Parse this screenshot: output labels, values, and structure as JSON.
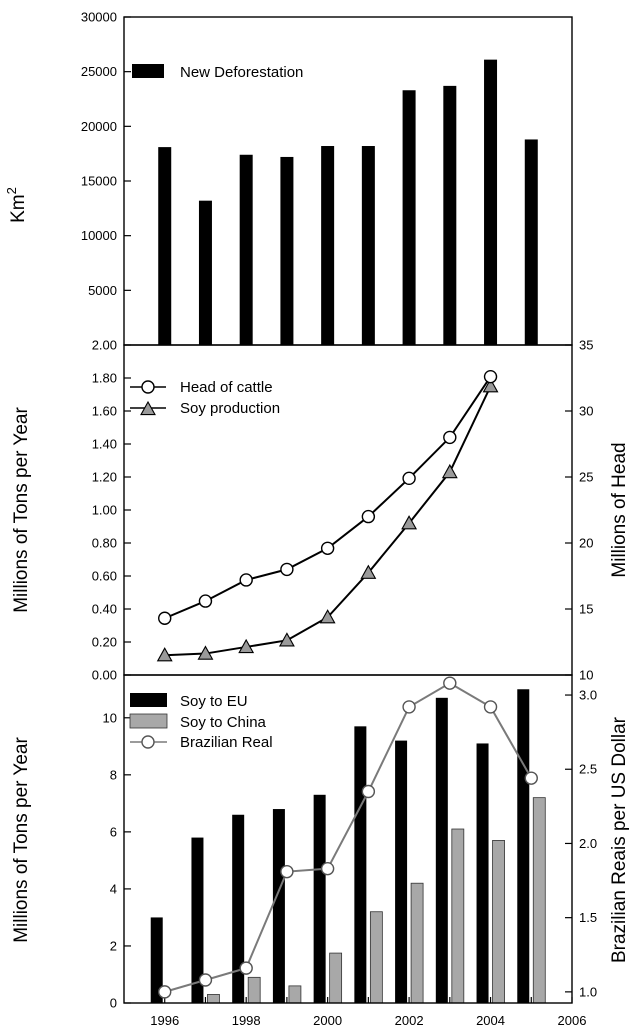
{
  "chart_data": [
    {
      "type": "bar",
      "ylabel": "Km",
      "ylabel_superscript": "2",
      "ylim": [
        0,
        30000
      ],
      "y_ticks": [
        "30000",
        "25000",
        "20000",
        "15000",
        "10000",
        "5000"
      ],
      "x_range": [
        1995,
        2006
      ],
      "colors": {
        "bar": "#000000"
      },
      "series": [
        {
          "name": "New Deforestation",
          "x": [
            1996,
            1997,
            1998,
            1999,
            2000,
            2001,
            2002,
            2003,
            2004,
            2005
          ],
          "values": [
            18100,
            13200,
            17400,
            17200,
            18200,
            18200,
            23300,
            23700,
            26100,
            18800
          ]
        }
      ],
      "legend": "top-left"
    },
    {
      "type": "line",
      "ylabel": "Millions of Tons per Year",
      "ylabel_right": "Millions of Head",
      "ylim": [
        0,
        2.0
      ],
      "ylim_right": [
        10,
        35
      ],
      "y_ticks": [
        "2.00",
        "1.80",
        "1.60",
        "1.40",
        "1.20",
        "1.00",
        "0.80",
        "0.60",
        "0.40",
        "0.20",
        "0.00"
      ],
      "y_ticks_right": [
        "35",
        "30",
        "25",
        "20",
        "15",
        "10"
      ],
      "x_range": [
        1995,
        2006
      ],
      "series": [
        {
          "name": "Head of cattle",
          "axis": "right",
          "marker": "circle",
          "color": "#000000",
          "x": [
            1996,
            1997,
            1998,
            1999,
            2000,
            2001,
            2002,
            2003,
            2004
          ],
          "values": [
            14.3,
            15.6,
            17.2,
            18.0,
            19.6,
            22.0,
            24.9,
            28.0,
            32.6
          ]
        },
        {
          "name": "Soy production",
          "axis": "left",
          "marker": "triangle",
          "color": "#000000",
          "x": [
            1996,
            1997,
            1998,
            1999,
            2000,
            2001,
            2002,
            2003,
            2004
          ],
          "values": [
            0.12,
            0.13,
            0.17,
            0.21,
            0.35,
            0.62,
            0.92,
            1.23,
            1.75
          ]
        }
      ],
      "legend": "top-left"
    },
    {
      "type": "bar",
      "ylabel": "Millions of Tons per Year",
      "ylabel_right": "Brazilian Reais per US Dollar",
      "ylim": [
        0,
        11.5
      ],
      "ylim_right": [
        0.925,
        3.135
      ],
      "y_ticks": [
        "10",
        "8",
        "6",
        "4",
        "2",
        "0"
      ],
      "y_ticks_right": [
        "3.0",
        "2.5",
        "2.0",
        "1.5",
        "1.0"
      ],
      "x_ticks": [
        "1996",
        "1998",
        "2000",
        "2002",
        "2004",
        "2006"
      ],
      "x_range": [
        1995,
        2006
      ],
      "series": [
        {
          "name": "Soy to EU",
          "color": "#000000",
          "x": [
            1996,
            1997,
            1998,
            1999,
            2000,
            2001,
            2002,
            2003,
            2004,
            2005
          ],
          "values": [
            3.0,
            5.8,
            6.6,
            6.8,
            7.3,
            9.7,
            9.2,
            10.7,
            9.1,
            11.0
          ]
        },
        {
          "name": "Soy to China",
          "color": "#a8a8a8",
          "x": [
            1996,
            1997,
            1998,
            1999,
            2000,
            2001,
            2002,
            2003,
            2004,
            2005
          ],
          "values": [
            0.0,
            0.3,
            0.9,
            0.6,
            1.75,
            3.2,
            4.2,
            6.1,
            5.7,
            7.2
          ]
        },
        {
          "name": "Brazilian Real",
          "type": "line",
          "axis": "right",
          "marker": "circle",
          "color": "#7a7a7a",
          "x": [
            1996,
            1997,
            1998,
            1999,
            2000,
            2001,
            2002,
            2003,
            2004,
            2005
          ],
          "values": [
            1.0,
            1.08,
            1.16,
            1.81,
            1.83,
            2.35,
            2.92,
            3.08,
            2.92,
            2.44
          ]
        }
      ],
      "legend": "top-left"
    }
  ]
}
